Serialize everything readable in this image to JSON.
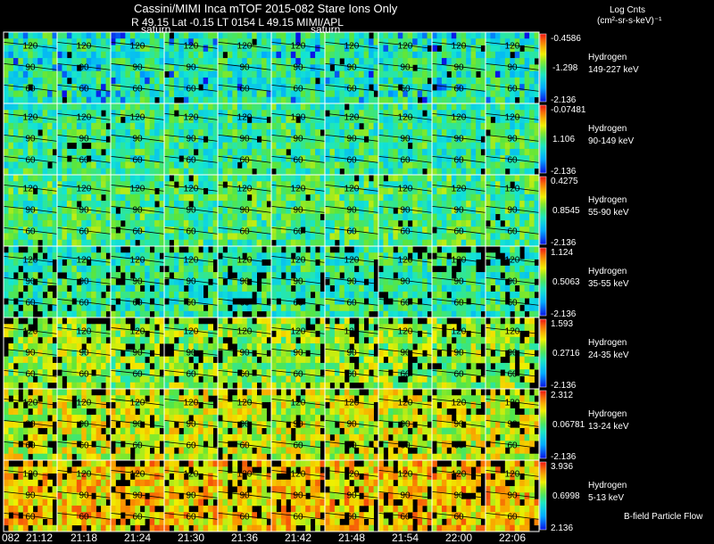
{
  "header": {
    "title": "Cassini/MIMI Inca mTOF  2015-082    Stare    Ions Only",
    "subtitle": "R        49.15 Lat -0.15 LT 0154 L        49.15  MIMI/APL",
    "saturn_label": "saturn",
    "units_line1": "Log Cnts",
    "units_line2": "(cm²-sr-s-keV)⁻¹"
  },
  "footer": {
    "bfield_label": "B-field Particle Flow",
    "date_prefix": "082"
  },
  "chart_data": {
    "type": "heatmap",
    "title": "Cassini/MIMI Inca mTOF  2015-082    Stare    Ions Only",
    "time_labels": [
      "21:12",
      "21:18",
      "21:24",
      "21:30",
      "21:36",
      "21:42",
      "21:48",
      "21:54",
      "22:00",
      "22:06"
    ],
    "contour_labels": [
      "120",
      "90",
      "60"
    ],
    "colorbar": "blue-cyan-green-yellow-red",
    "rows": [
      {
        "species": "Hydrogen",
        "energy": "149-227 keV",
        "cbar_max": "-0.4586",
        "cbar_mid": "-1.298",
        "cbar_min": "-2.136",
        "level": 0.42
      },
      {
        "species": "Hydrogen",
        "energy": "90-149 keV",
        "cbar_max": "-0.07481",
        "cbar_mid": "1.106",
        "cbar_min": "-2.136",
        "level": 0.45
      },
      {
        "species": "Hydrogen",
        "energy": "55-90 keV",
        "cbar_max": "0.4275",
        "cbar_mid": "0.8545",
        "cbar_min": "-2.136",
        "level": 0.48
      },
      {
        "species": "Hydrogen",
        "energy": "35-55 keV",
        "cbar_max": "1.124",
        "cbar_mid": "0.5063",
        "cbar_min": "-2.136",
        "level": 0.44
      },
      {
        "species": "Hydrogen",
        "energy": "24-35 keV",
        "cbar_max": "1.593",
        "cbar_mid": "0.2716",
        "cbar_min": "-2.136",
        "level": 0.58
      },
      {
        "species": "Hydrogen",
        "energy": "13-24 keV",
        "cbar_max": "2.312",
        "cbar_mid": "0.06781",
        "cbar_min": "-2.136",
        "level": 0.66
      },
      {
        "species": "Hydrogen",
        "energy": "5-13 keV",
        "cbar_max": "3.936",
        "cbar_mid": "0.6998",
        "cbar_min": "2.136",
        "level": 0.76
      }
    ]
  }
}
